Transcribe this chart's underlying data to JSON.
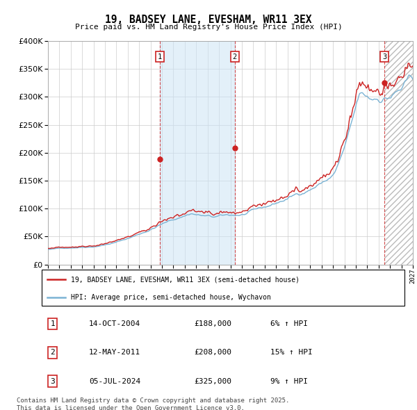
{
  "title": "19, BADSEY LANE, EVESHAM, WR11 3EX",
  "subtitle": "Price paid vs. HM Land Registry's House Price Index (HPI)",
  "sale1_date": "14-OCT-2004",
  "sale1_price": 188000,
  "sale1_hpi_pct": "6%",
  "sale1_year": 2004.79,
  "sale2_date": "12-MAY-2011",
  "sale2_price": 208000,
  "sale2_hpi_pct": "15%",
  "sale2_year": 2011.37,
  "sale3_date": "05-JUL-2024",
  "sale3_price": 325000,
  "sale3_hpi_pct": "9%",
  "sale3_year": 2024.51,
  "hpi_color": "#7ab3d4",
  "price_color": "#cc2222",
  "legend_label_price": "19, BADSEY LANE, EVESHAM, WR11 3EX (semi-detached house)",
  "legend_label_hpi": "HPI: Average price, semi-detached house, Wychavon",
  "footnote": "Contains HM Land Registry data © Crown copyright and database right 2025.\nThis data is licensed under the Open Government Licence v3.0.",
  "xmin": 1995,
  "xmax": 2027,
  "ymin": 0,
  "ymax": 400000
}
